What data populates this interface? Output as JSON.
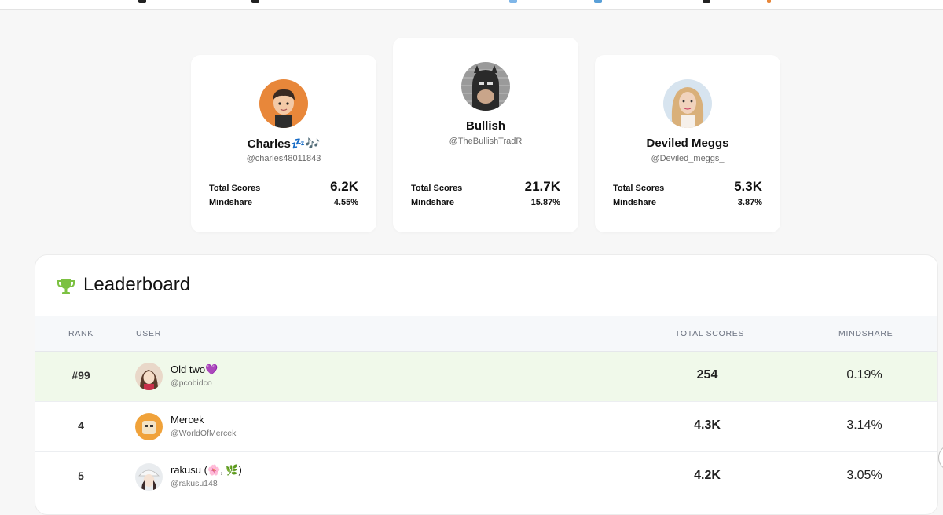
{
  "top_cards": [
    {
      "name": "Charles💤🎶",
      "handle": "@charles48011843",
      "total_scores_label": "Total Scores",
      "total_scores": "6.2K",
      "mindshare_label": "Mindshare",
      "mindshare": "4.55%"
    },
    {
      "name": "Bullish",
      "handle": "@TheBullishTradR",
      "total_scores_label": "Total Scores",
      "total_scores": "21.7K",
      "mindshare_label": "Mindshare",
      "mindshare": "15.87%"
    },
    {
      "name": "Deviled Meggs",
      "handle": "@Deviled_meggs_",
      "total_scores_label": "Total Scores",
      "total_scores": "5.3K",
      "mindshare_label": "Mindshare",
      "mindshare": "3.87%"
    }
  ],
  "leaderboard": {
    "title": "Leaderboard",
    "icon": "trophy-icon",
    "columns": {
      "rank": "RANK",
      "user": "USER",
      "total_scores": "TOTAL SCORES",
      "mindshare": "MINDSHARE"
    },
    "rows": [
      {
        "rank": "#99",
        "name": "Old two💜",
        "handle": "@pcobidco",
        "total_scores": "254",
        "mindshare": "0.19%",
        "highlighted": true
      },
      {
        "rank": "4",
        "name": "Mercek",
        "handle": "@WorldOfMercek",
        "total_scores": "4.3K",
        "mindshare": "3.14%",
        "highlighted": false
      },
      {
        "rank": "5",
        "name": "rakusu (🌸, 🌿)",
        "handle": "@rakusu148",
        "total_scores": "4.2K",
        "mindshare": "3.05%",
        "highlighted": false
      }
    ]
  },
  "colors": {
    "highlight_row": "#f0f9ea",
    "trophy": "#7cc142",
    "avatar_charles_bg": "#e8873a"
  }
}
